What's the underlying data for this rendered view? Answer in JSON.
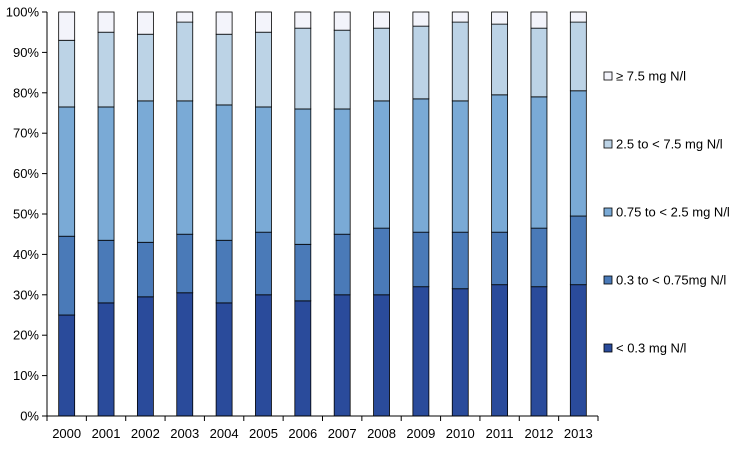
{
  "chart_data": {
    "type": "bar",
    "stacked": true,
    "percent": true,
    "title": "",
    "xlabel": "",
    "ylabel": "",
    "ylim": [
      0,
      100
    ],
    "yticks": [
      "0%",
      "10%",
      "20%",
      "30%",
      "40%",
      "50%",
      "60%",
      "70%",
      "80%",
      "90%",
      "100%"
    ],
    "grid": false,
    "legend_position": "right",
    "categories": [
      "2000",
      "2001",
      "2002",
      "2003",
      "2004",
      "2005",
      "2006",
      "2007",
      "2008",
      "2009",
      "2010",
      "2011",
      "2012",
      "2013"
    ],
    "series": [
      {
        "name": "< 0.3 mg N/l",
        "color": "#2a4b9b",
        "values": [
          25,
          28,
          29.5,
          30.5,
          28,
          30,
          28.5,
          30,
          30,
          32,
          31.5,
          32.5,
          32,
          32.5
        ]
      },
      {
        "name": "0.3 to < 0.75mg N/l",
        "color": "#4a7ab8",
        "values": [
          19.5,
          15.5,
          13.5,
          14.5,
          15.5,
          15.5,
          14,
          15,
          16.5,
          13.5,
          14,
          13,
          14.5,
          17
        ]
      },
      {
        "name": "0.75 to < 2.5 mg N/l",
        "color": "#7aaad6",
        "values": [
          32,
          33,
          35,
          33,
          33.5,
          31,
          33.5,
          31,
          31.5,
          33,
          32.5,
          34,
          32.5,
          31
        ]
      },
      {
        "name": "2.5 to < 7.5 mg N/l",
        "color": "#bcd3e6",
        "values": [
          16.5,
          18.5,
          16.5,
          19.5,
          17.5,
          18.5,
          20,
          19.5,
          18,
          18,
          19.5,
          17.5,
          17,
          17
        ]
      },
      {
        "name": "≥ 7.5 mg N/l",
        "color": "#f3f4fb",
        "values": [
          7,
          5,
          5.5,
          2.5,
          5.5,
          5,
          4,
          4.5,
          4,
          3.5,
          2.5,
          3,
          4,
          2.5
        ]
      }
    ]
  }
}
